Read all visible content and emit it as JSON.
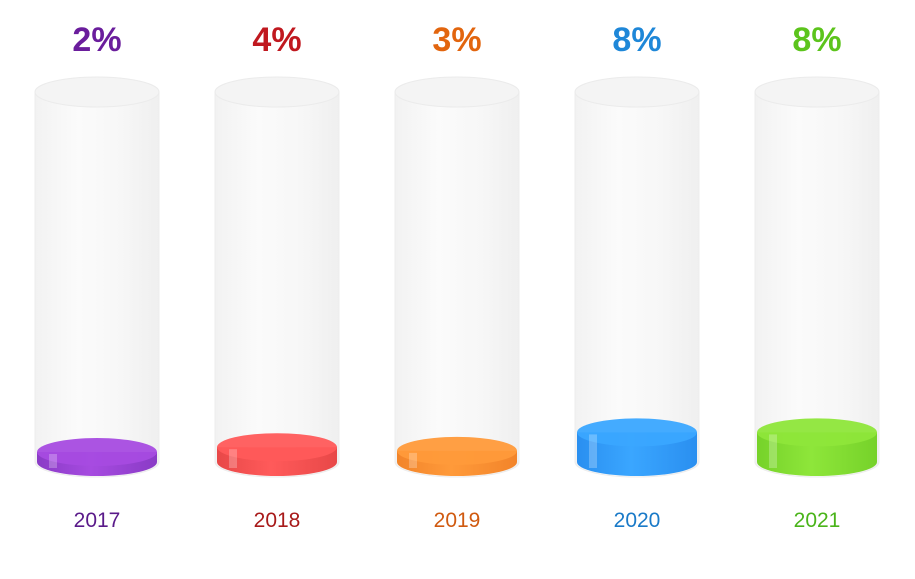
{
  "chart_data": {
    "type": "bar",
    "categories": [
      "2017",
      "2018",
      "2019",
      "2020",
      "2021"
    ],
    "values": [
      2,
      4,
      3,
      8,
      8
    ],
    "value_labels": [
      "2%",
      "4%",
      "3%",
      "8%",
      "8%"
    ],
    "unit": "%",
    "ylim": [
      0,
      100
    ],
    "title": "",
    "xlabel": "",
    "ylabel": "",
    "grid": false,
    "legend": "none",
    "colors": {
      "fill": [
        "#a64be0",
        "#ff5a5a",
        "#ff9a3a",
        "#3aa6ff",
        "#8ee63a"
      ],
      "fill_dark": [
        "#8a3bc6",
        "#e84848",
        "#f2842a",
        "#2a8ff0",
        "#76d22a"
      ],
      "label": [
        "#6a1d9c",
        "#c0181f",
        "#e2650e",
        "#1e87d8",
        "#5cc41c"
      ],
      "year": [
        "#5a1a8a",
        "#a81a1a",
        "#d05a10",
        "#1a7ac8",
        "#4ab41a"
      ]
    }
  }
}
